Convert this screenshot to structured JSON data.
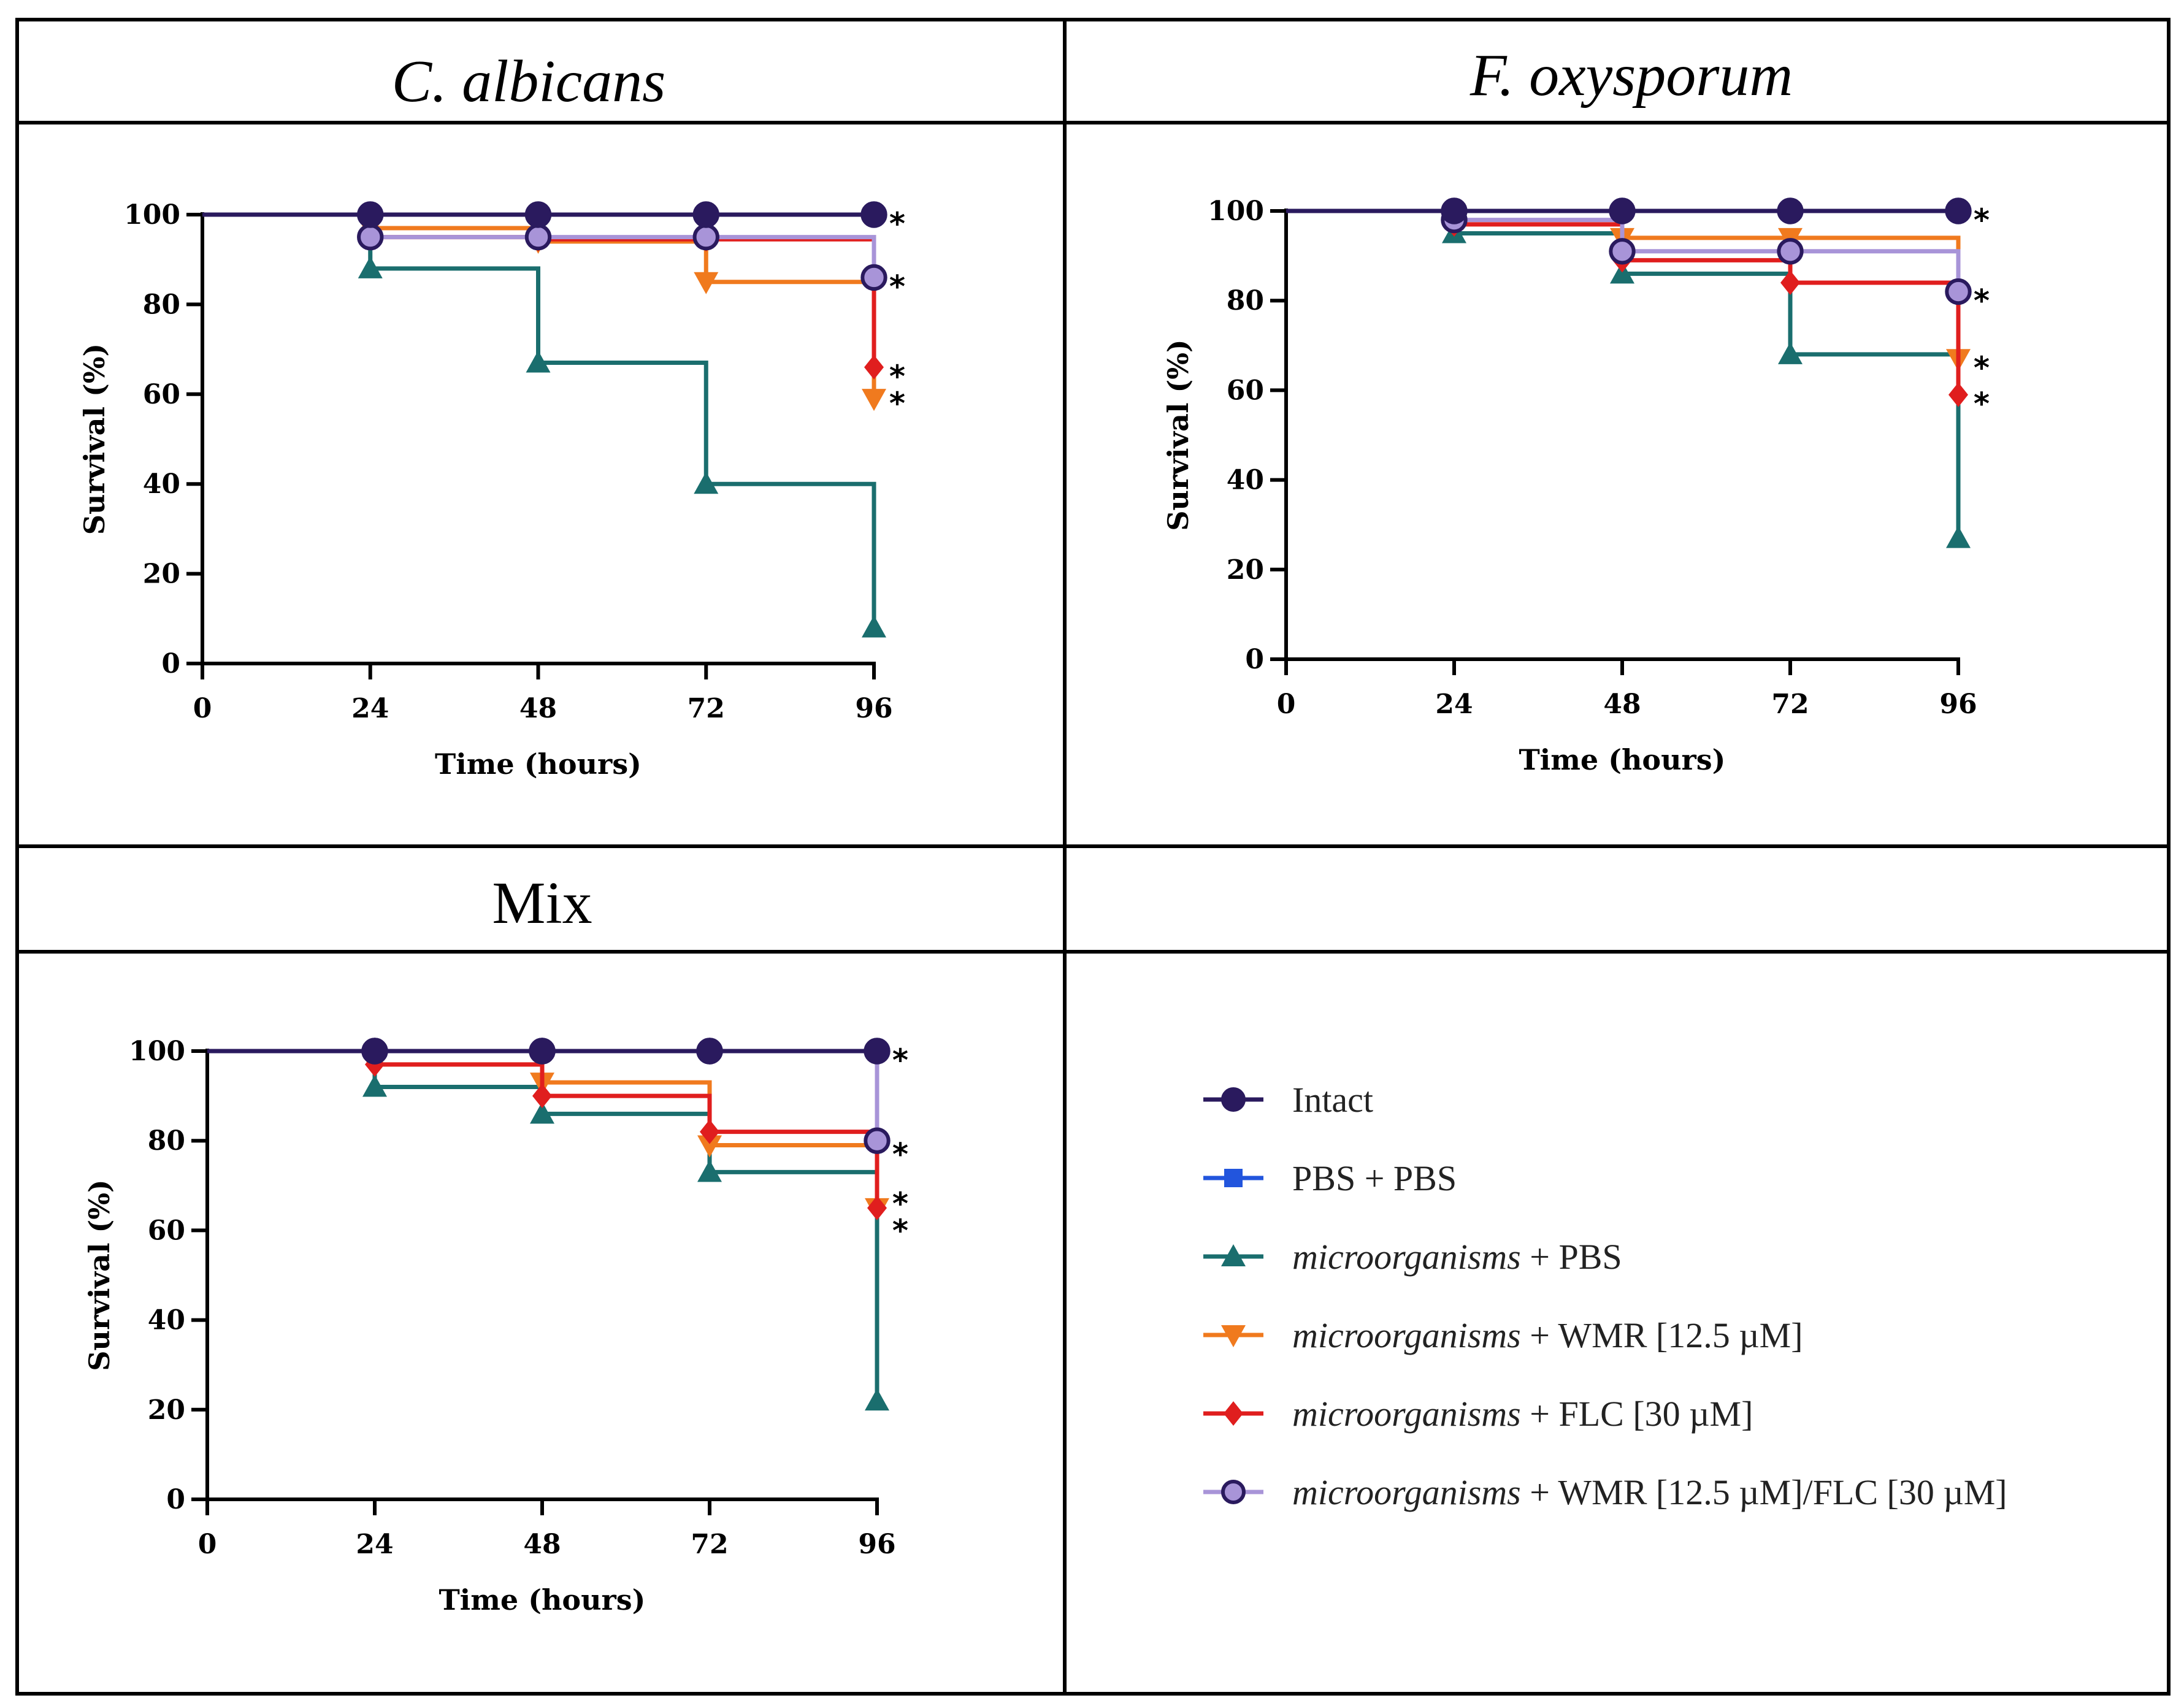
{
  "colors": {
    "intact": "#2a1a5e",
    "pbs_pbs": "#2a1a5e",
    "micro_pbs": "#1a6e6e",
    "micro_wmr": "#f07a1e",
    "micro_flc": "#e01e1e",
    "micro_wmr_flc": "#a894d8",
    "frame": "#000000"
  },
  "legend": {
    "entries": [
      {
        "key": "intact",
        "icon": "circle-icon",
        "italic": "",
        "rest": "Intact"
      },
      {
        "key": "pbs_pbs",
        "icon": "square-icon",
        "italic": "",
        "rest": "PBS + PBS"
      },
      {
        "key": "micro_pbs",
        "icon": "triangle-up-icon",
        "italic": "microorganisms",
        "rest": " + PBS"
      },
      {
        "key": "micro_wmr",
        "icon": "triangle-down-icon",
        "italic": "microorganisms",
        "rest": " + WMR [12.5 µM]"
      },
      {
        "key": "micro_flc",
        "icon": "diamond-icon",
        "italic": "microorganisms",
        "rest": " + FLC [30 µM]"
      },
      {
        "key": "micro_wmr_flc",
        "icon": "circle-icon",
        "italic": "microorganisms",
        "rest": " +  WMR [12.5 µM]/FLC [30 µM]"
      }
    ],
    "legend_swatch_colors": {
      "intact": "#2a1a5e",
      "pbs_pbs": "#2255dd",
      "micro_pbs": "#1a6e6e",
      "micro_wmr": "#f07a1e",
      "micro_flc": "#e01e1e",
      "micro_wmr_flc": "#a894d8"
    }
  },
  "chart_data": [
    {
      "type": "line",
      "subtype": "kaplan-meier survival",
      "title": "C. albicans",
      "title_italic": true,
      "xlabel": "Time (hours)",
      "ylabel": "Survival (%)",
      "x": [
        0,
        24,
        48,
        72,
        96
      ],
      "xticks": [
        "0",
        "24",
        "48",
        "72",
        "96"
      ],
      "yticks": [
        "0",
        "20",
        "40",
        "60",
        "80",
        "100"
      ],
      "xlim": [
        0,
        96
      ],
      "ylim": [
        0,
        100
      ],
      "series": [
        {
          "key": "micro_pbs",
          "name": "microorganisms + PBS",
          "marker": "triangle-up",
          "values": [
            100,
            88,
            67,
            40,
            8
          ]
        },
        {
          "key": "micro_wmr",
          "name": "microorganisms + WMR [12.5 µM]",
          "marker": "triangle-down",
          "values": [
            100,
            97,
            94,
            85,
            59
          ]
        },
        {
          "key": "micro_flc",
          "name": "microorganisms + FLC [30 µM]",
          "marker": "diamond",
          "values": [
            100,
            95,
            94.5,
            94.5,
            66
          ]
        },
        {
          "key": "micro_wmr_flc",
          "name": "microorganisms + WMR [12.5 µM]/FLC [30 µM]",
          "marker": "circle",
          "values": [
            100,
            95,
            95,
            95,
            86
          ]
        },
        {
          "key": "pbs_pbs",
          "name": "PBS + PBS",
          "marker": "square",
          "values": [
            100,
            100,
            100,
            100,
            100
          ]
        },
        {
          "key": "intact",
          "name": "Intact",
          "marker": "circle",
          "values": [
            100,
            100,
            100,
            100,
            100
          ]
        }
      ],
      "annotations": [
        {
          "text": "*",
          "y": 100
        },
        {
          "text": "*",
          "y": 86
        },
        {
          "text": "*",
          "y": 66
        },
        {
          "text": "*",
          "y": 60
        }
      ]
    },
    {
      "type": "line",
      "subtype": "kaplan-meier survival",
      "title": "F. oxysporum",
      "title_italic": true,
      "xlabel": "Time (hours)",
      "ylabel": "Survival (%)",
      "x": [
        0,
        24,
        48,
        72,
        96
      ],
      "xticks": [
        "0",
        "24",
        "48",
        "72",
        "96"
      ],
      "yticks": [
        "0",
        "20",
        "40",
        "60",
        "80",
        "100"
      ],
      "xlim": [
        0,
        96
      ],
      "ylim": [
        0,
        100
      ],
      "series": [
        {
          "key": "micro_pbs",
          "name": "microorganisms + PBS",
          "marker": "triangle-up",
          "values": [
            100,
            95,
            86,
            68,
            27
          ]
        },
        {
          "key": "micro_wmr",
          "name": "microorganisms + WMR [12.5 µM]",
          "marker": "triangle-down",
          "values": [
            100,
            97,
            94,
            94,
            67
          ]
        },
        {
          "key": "micro_flc",
          "name": "microorganisms + FLC [30 µM]",
          "marker": "diamond",
          "values": [
            100,
            97,
            89,
            84,
            59
          ]
        },
        {
          "key": "micro_wmr_flc",
          "name": "microorganisms + WMR [12.5 µM]/FLC [30 µM]",
          "marker": "circle",
          "values": [
            100,
            98,
            91,
            91,
            82
          ]
        },
        {
          "key": "pbs_pbs",
          "name": "PBS + PBS",
          "marker": "square",
          "values": [
            100,
            100,
            100,
            100,
            100
          ]
        },
        {
          "key": "intact",
          "name": "Intact",
          "marker": "circle",
          "values": [
            100,
            100,
            100,
            100,
            100
          ]
        }
      ],
      "annotations": [
        {
          "text": "*",
          "y": 100
        },
        {
          "text": "*",
          "y": 82
        },
        {
          "text": "*",
          "y": 67
        },
        {
          "text": "*",
          "y": 59
        }
      ]
    },
    {
      "type": "line",
      "subtype": "kaplan-meier survival",
      "title": "Mix",
      "title_italic": false,
      "xlabel": "Time (hours)",
      "ylabel": "Survival (%)",
      "x": [
        0,
        24,
        48,
        72,
        96
      ],
      "xticks": [
        "0",
        "24",
        "48",
        "72",
        "96"
      ],
      "yticks": [
        "0",
        "20",
        "40",
        "60",
        "80",
        "100"
      ],
      "xlim": [
        0,
        96
      ],
      "ylim": [
        0,
        100
      ],
      "series": [
        {
          "key": "micro_pbs",
          "name": "microorganisms + PBS",
          "marker": "triangle-up",
          "values": [
            100,
            92,
            86,
            73,
            22
          ]
        },
        {
          "key": "micro_wmr",
          "name": "microorganisms + WMR [12.5 µM]",
          "marker": "triangle-down",
          "values": [
            100,
            97,
            93,
            79,
            65
          ]
        },
        {
          "key": "micro_flc",
          "name": "microorganisms + FLC [30 µM]",
          "marker": "diamond",
          "values": [
            100,
            97,
            90,
            82,
            65
          ]
        },
        {
          "key": "micro_wmr_flc",
          "name": "microorganisms + WMR [12.5 µM]/FLC [30 µM]",
          "marker": "circle",
          "values": [
            100,
            100,
            100,
            100,
            80
          ]
        },
        {
          "key": "pbs_pbs",
          "name": "PBS + PBS",
          "marker": "square",
          "values": [
            100,
            100,
            100,
            100,
            100
          ]
        },
        {
          "key": "intact",
          "name": "Intact",
          "marker": "circle",
          "values": [
            100,
            100,
            100,
            100,
            100
          ]
        }
      ],
      "annotations": [
        {
          "text": "*",
          "y": 100
        },
        {
          "text": "*",
          "y": 79
        },
        {
          "text": "*",
          "y": 68
        },
        {
          "text": "*",
          "y": 62
        }
      ]
    }
  ]
}
